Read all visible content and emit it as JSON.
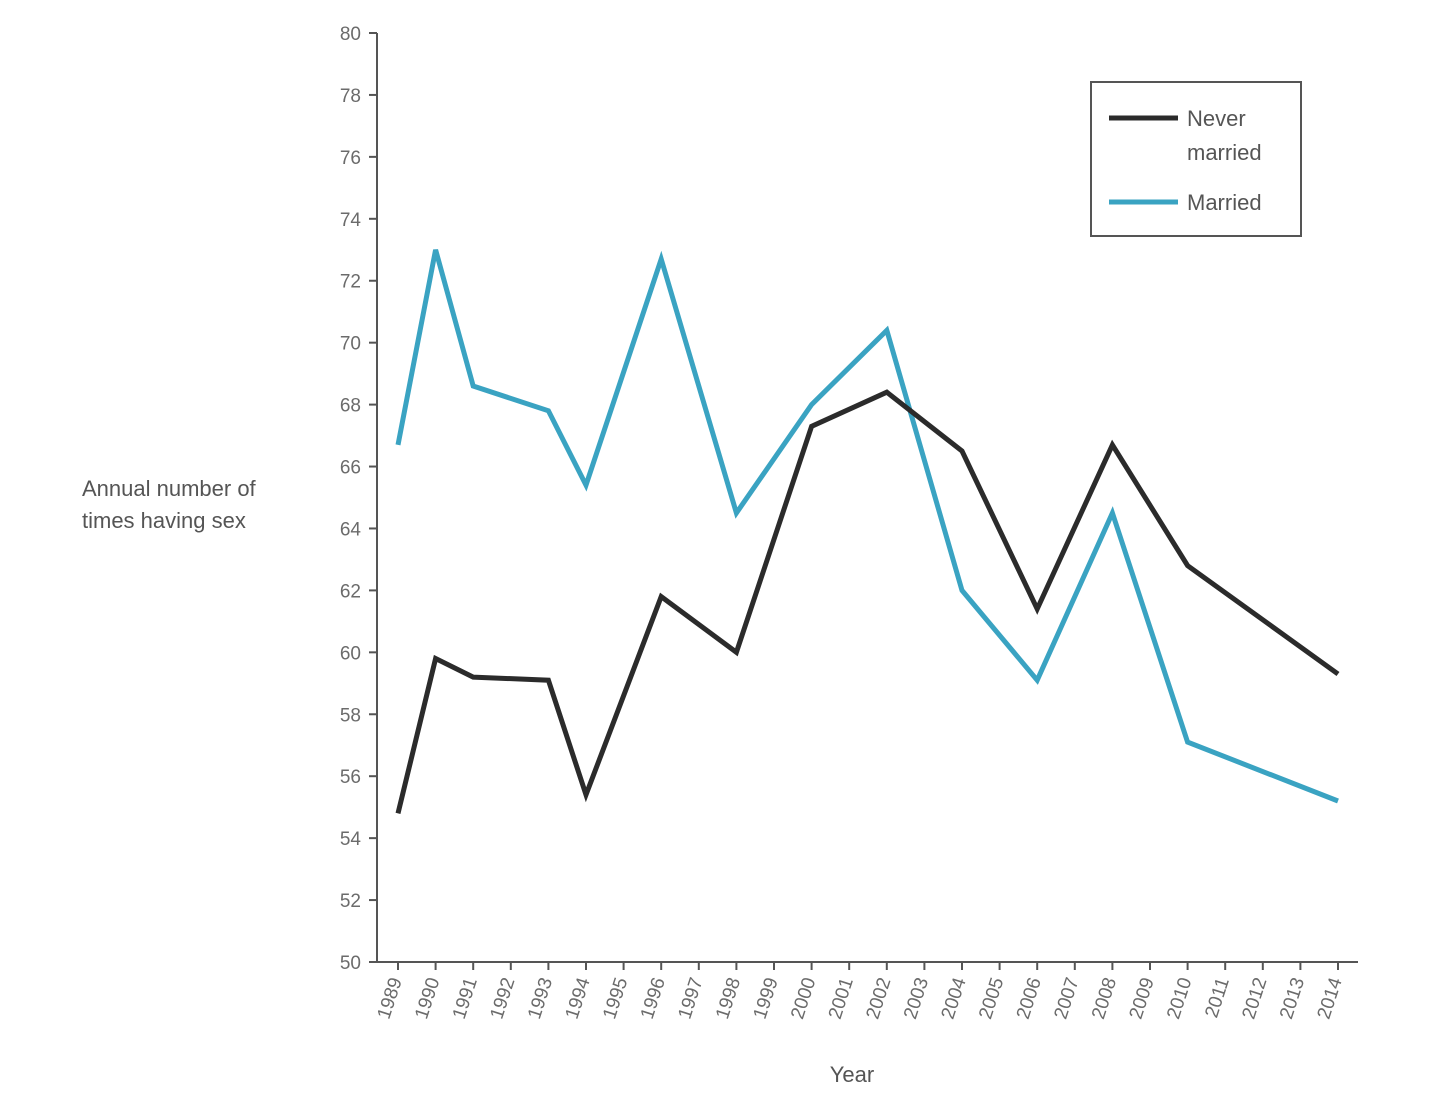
{
  "chart_data": {
    "type": "line",
    "title": "",
    "xlabel": "Year",
    "ylabel_lines": [
      "Annual number of",
      "times having sex"
    ],
    "ylim": [
      50,
      80
    ],
    "y_ticks": [
      50,
      52,
      54,
      56,
      58,
      60,
      62,
      64,
      66,
      68,
      70,
      72,
      74,
      76,
      78,
      80
    ],
    "categories": [
      "1989",
      "1990",
      "1991",
      "1992",
      "1993",
      "1994",
      "1995",
      "1996",
      "1997",
      "1998",
      "1999",
      "2000",
      "2001",
      "2002",
      "2003",
      "2004",
      "2005",
      "2006",
      "2007",
      "2008",
      "2009",
      "2010",
      "2011",
      "2012",
      "2013",
      "2014"
    ],
    "legend_position": "top-right",
    "series": [
      {
        "name": "Never married",
        "legend_lines": [
          "Never",
          "married"
        ],
        "color": "#2b2b2b",
        "points": [
          {
            "x": "1989",
            "y": 54.8
          },
          {
            "x": "1990",
            "y": 59.8
          },
          {
            "x": "1991",
            "y": 59.2
          },
          {
            "x": "1993",
            "y": 59.1
          },
          {
            "x": "1994",
            "y": 55.4
          },
          {
            "x": "1996",
            "y": 61.8
          },
          {
            "x": "1998",
            "y": 60.0
          },
          {
            "x": "2000",
            "y": 67.3
          },
          {
            "x": "2002",
            "y": 68.4
          },
          {
            "x": "2004",
            "y": 66.5
          },
          {
            "x": "2006",
            "y": 61.4
          },
          {
            "x": "2008",
            "y": 66.7
          },
          {
            "x": "2010",
            "y": 62.8
          },
          {
            "x": "2014",
            "y": 59.3
          }
        ]
      },
      {
        "name": "Married",
        "legend_lines": [
          "Married"
        ],
        "color": "#3aa3c2",
        "points": [
          {
            "x": "1989",
            "y": 66.7
          },
          {
            "x": "1990",
            "y": 73.0
          },
          {
            "x": "1991",
            "y": 68.6
          },
          {
            "x": "1993",
            "y": 67.8
          },
          {
            "x": "1994",
            "y": 65.4
          },
          {
            "x": "1996",
            "y": 72.7
          },
          {
            "x": "1998",
            "y": 64.5
          },
          {
            "x": "2000",
            "y": 68.0
          },
          {
            "x": "2002",
            "y": 70.4
          },
          {
            "x": "2004",
            "y": 62.0
          },
          {
            "x": "2006",
            "y": 59.1
          },
          {
            "x": "2008",
            "y": 64.5
          },
          {
            "x": "2010",
            "y": 57.1
          },
          {
            "x": "2014",
            "y": 55.2
          }
        ]
      }
    ]
  }
}
